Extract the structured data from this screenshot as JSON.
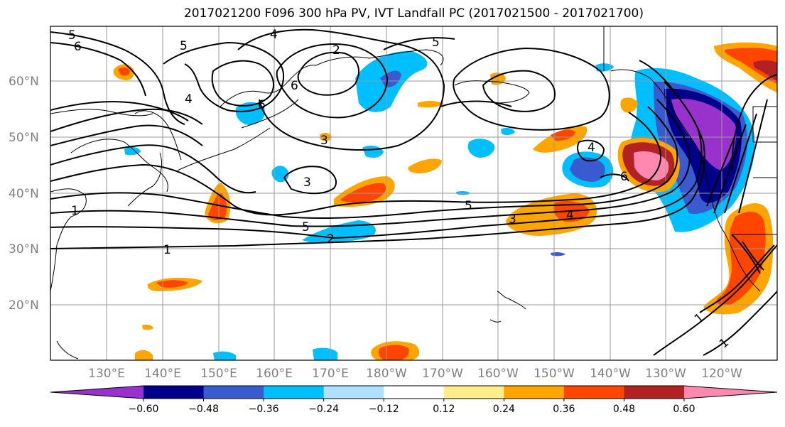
{
  "title": "2017021200 F096 300 hPa PV, IVT Landfall PC (2017021500 - 2017021700)",
  "map": {
    "lat_labels": [
      "20°N",
      "30°N",
      "40°N",
      "50°N",
      "60°N"
    ],
    "lon_labels": [
      "130°E",
      "140°E",
      "150°E",
      "160°E",
      "170°E",
      "180°W",
      "170°W",
      "160°W",
      "150°W",
      "140°W",
      "130°W",
      "120°W"
    ],
    "contour_labels": [
      "5",
      "6",
      "4",
      "2",
      "5",
      "6",
      "6",
      "3",
      "3",
      "1",
      "1",
      "5",
      "2",
      "4",
      "5",
      "3",
      "4",
      "6",
      "1",
      "1"
    ]
  },
  "colorbar": {
    "ticks": [
      "−0.60",
      "−0.48",
      "−0.36",
      "−0.24",
      "−0.12",
      "0.12",
      "0.24",
      "0.36",
      "0.48",
      "0.60"
    ],
    "colors": [
      "#9932CC",
      "#00008B",
      "#3A5BCF",
      "#00BFFF",
      "#B0E0FF",
      "#FFFFFF",
      "#FFEC8B",
      "#FFA500",
      "#FF4500",
      "#B22222",
      "#FF88B0"
    ]
  }
}
